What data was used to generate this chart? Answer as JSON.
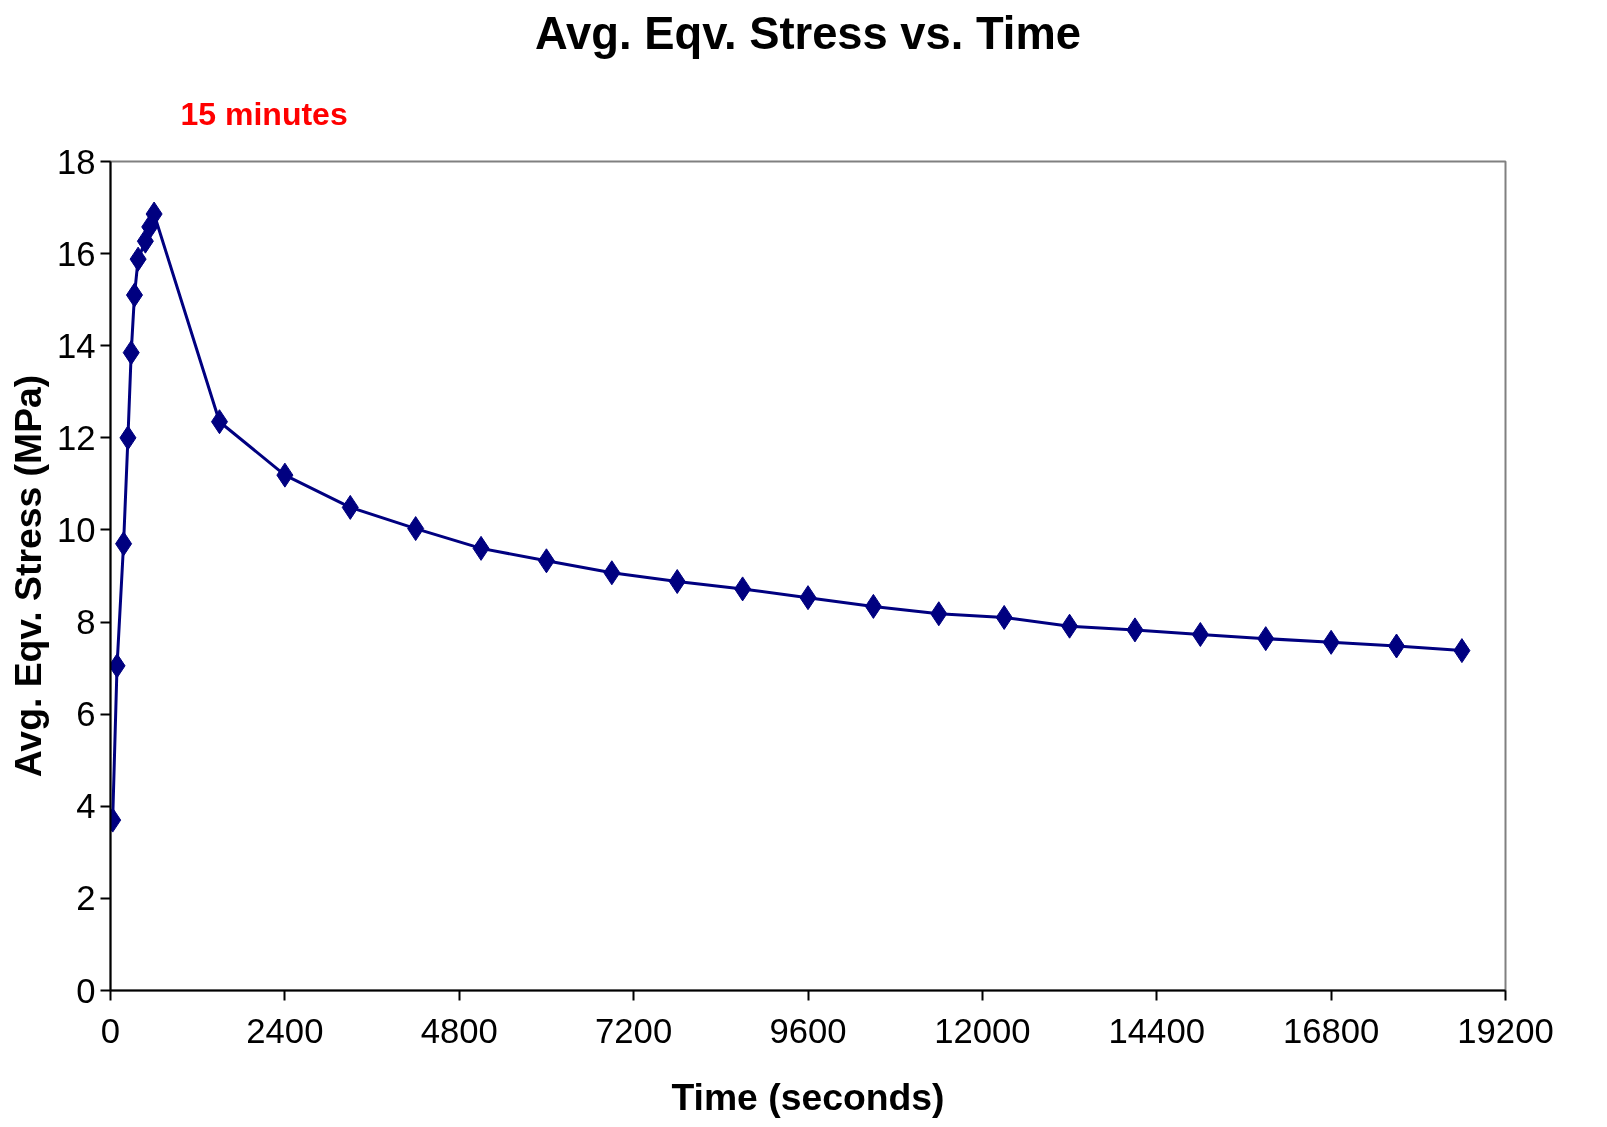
{
  "chart_data": {
    "type": "line",
    "title": "Avg. Eqv. Stress vs. Time",
    "xlabel": "Time (seconds)",
    "ylabel": "Avg. Eqv. Stress (MPa)",
    "annotations": [
      "15 minutes"
    ],
    "x": [
      30,
      90,
      180,
      240,
      285,
      330,
      380,
      480,
      540,
      600,
      1500,
      2400,
      3300,
      4200,
      5100,
      6000,
      6900,
      7800,
      8700,
      9600,
      10500,
      11400,
      12300,
      13200,
      14100,
      15000,
      15900,
      16800,
      17700,
      18600
    ],
    "series": [
      {
        "color": "#000080",
        "values": [
          3.7,
          7.05,
          9.7,
          12.0,
          13.85,
          15.1,
          15.88,
          16.27,
          16.58,
          16.86,
          12.35,
          11.19,
          10.49,
          10.03,
          9.6,
          9.33,
          9.07,
          8.88,
          8.72,
          8.53,
          8.34,
          8.18,
          8.1,
          7.91,
          7.83,
          7.73,
          7.64,
          7.56,
          7.48,
          7.38
        ]
      }
    ],
    "xlim": [
      0,
      19200
    ],
    "xticks": [
      0,
      2400,
      4800,
      7200,
      9600,
      12000,
      14400,
      16800,
      19200
    ],
    "ylim": [
      0,
      18
    ],
    "yticks": [
      0,
      2,
      4,
      6,
      8,
      10,
      12,
      14,
      16,
      18
    ],
    "grid": false,
    "marker": "diamond",
    "line_style": "solid"
  }
}
